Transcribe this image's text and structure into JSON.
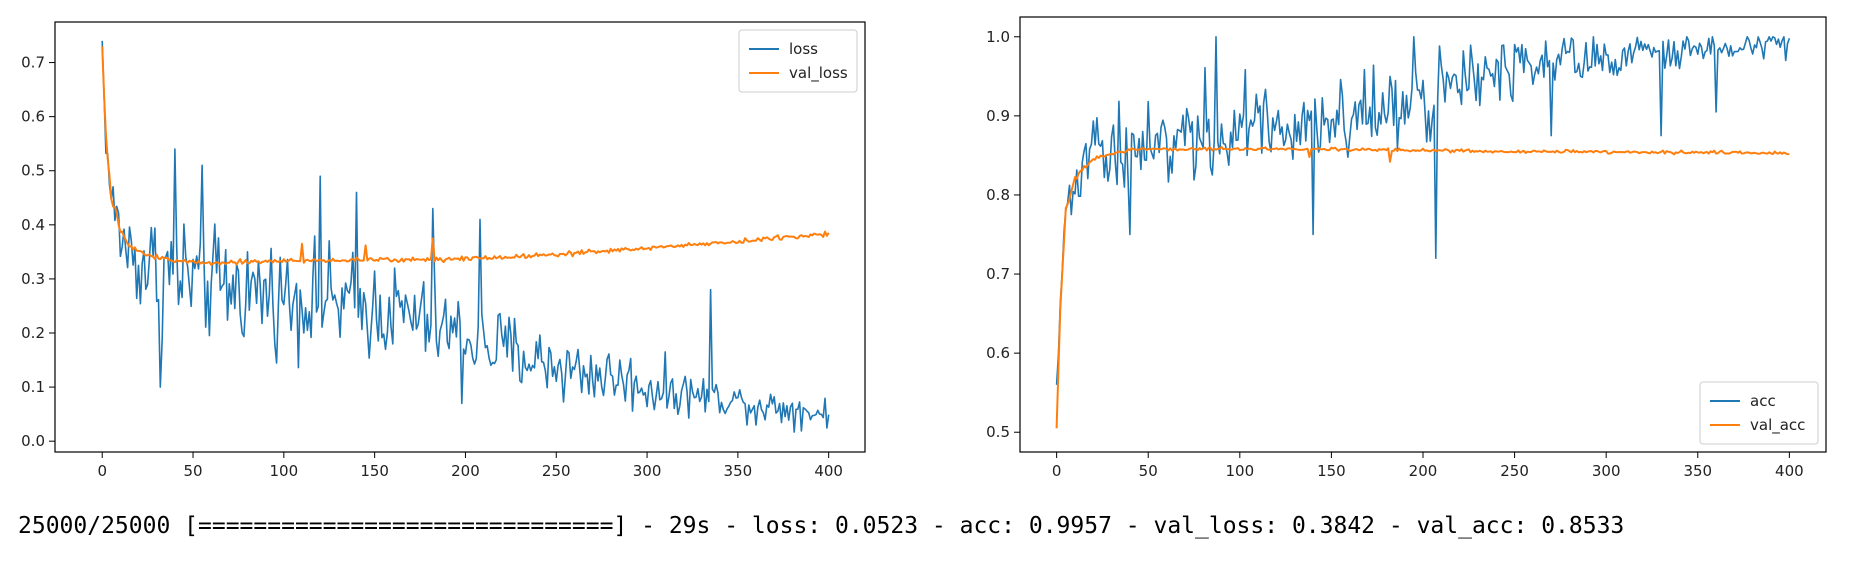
{
  "chart_data": [
    {
      "type": "line",
      "title": "",
      "xlabel": "",
      "ylabel": "",
      "xlim": [
        -26,
        420
      ],
      "ylim": [
        -0.02,
        0.775
      ],
      "xticks": [
        0,
        50,
        100,
        150,
        200,
        250,
        300,
        350,
        400
      ],
      "yticks": [
        0.0,
        0.1,
        0.2,
        0.3,
        0.4,
        0.5,
        0.6,
        0.7
      ],
      "ytick_labels": [
        "0.0",
        "0.1",
        "0.2",
        "0.3",
        "0.4",
        "0.5",
        "0.6",
        "0.7"
      ],
      "legend_position": "top-right",
      "grid": false,
      "series": [
        {
          "name": "loss",
          "color": "#1f77b4",
          "noisy": true,
          "x": [
            0,
            2,
            5,
            10,
            15,
            20,
            30,
            40,
            50,
            60,
            80,
            100,
            120,
            140,
            160,
            180,
            200,
            220,
            240,
            260,
            280,
            300,
            320,
            340,
            360,
            380,
            400
          ],
          "y": [
            0.74,
            0.55,
            0.45,
            0.38,
            0.35,
            0.33,
            0.32,
            0.31,
            0.3,
            0.29,
            0.28,
            0.27,
            0.26,
            0.25,
            0.24,
            0.22,
            0.19,
            0.17,
            0.15,
            0.13,
            0.12,
            0.1,
            0.09,
            0.08,
            0.07,
            0.06,
            0.05
          ],
          "amplitude": [
            0.0,
            0.02,
            0.05,
            0.07,
            0.08,
            0.09,
            0.1,
            0.11,
            0.1,
            0.1,
            0.09,
            0.09,
            0.09,
            0.09,
            0.08,
            0.08,
            0.07,
            0.07,
            0.06,
            0.06,
            0.05,
            0.05,
            0.04,
            0.03,
            0.03,
            0.03,
            0.03
          ],
          "spikes": [
            [
              40,
              0.54
            ],
            [
              55,
              0.51
            ],
            [
              120,
              0.49
            ],
            [
              140,
              0.46
            ],
            [
              182,
              0.43
            ],
            [
              208,
              0.41
            ],
            [
              335,
              0.28
            ],
            [
              32,
              0.1
            ],
            [
              198,
              0.07
            ],
            [
              360,
              0.03
            ]
          ]
        },
        {
          "name": "val_loss",
          "color": "#ff7f0e",
          "noisy": false,
          "x": [
            0,
            2,
            5,
            10,
            15,
            20,
            30,
            40,
            50,
            60,
            80,
            100,
            120,
            140,
            160,
            180,
            200,
            220,
            240,
            260,
            280,
            300,
            320,
            340,
            360,
            380,
            400
          ],
          "y": [
            0.73,
            0.56,
            0.45,
            0.39,
            0.36,
            0.35,
            0.34,
            0.335,
            0.33,
            0.33,
            0.332,
            0.333,
            0.334,
            0.335,
            0.335,
            0.336,
            0.338,
            0.34,
            0.344,
            0.348,
            0.352,
            0.357,
            0.362,
            0.367,
            0.372,
            0.378,
            0.384
          ],
          "amplitude": [
            0.0,
            0.01,
            0.008,
            0.006,
            0.004,
            0.004,
            0.004,
            0.004,
            0.004,
            0.004,
            0.004,
            0.004,
            0.004,
            0.004,
            0.004,
            0.004,
            0.004,
            0.004,
            0.004,
            0.004,
            0.004,
            0.004,
            0.004,
            0.004,
            0.004,
            0.004,
            0.004
          ],
          "spikes": [
            [
              110,
              0.365
            ],
            [
              145,
              0.362
            ],
            [
              182,
              0.375
            ]
          ]
        }
      ]
    },
    {
      "type": "line",
      "title": "",
      "xlabel": "",
      "ylabel": "",
      "xlim": [
        -20,
        420
      ],
      "ylim": [
        0.475,
        1.025
      ],
      "xticks": [
        0,
        50,
        100,
        150,
        200,
        250,
        300,
        350,
        400
      ],
      "yticks": [
        0.5,
        0.6,
        0.7,
        0.8,
        0.9,
        1.0
      ],
      "ytick_labels": [
        "0.5",
        "0.6",
        "0.7",
        "0.8",
        "0.9",
        "1.0"
      ],
      "legend_position": "bottom-right",
      "grid": false,
      "series": [
        {
          "name": "acc",
          "color": "#1f77b4",
          "noisy": true,
          "x": [
            0,
            2,
            5,
            10,
            15,
            20,
            30,
            40,
            50,
            60,
            80,
            100,
            120,
            140,
            160,
            180,
            200,
            220,
            240,
            260,
            280,
            300,
            320,
            340,
            360,
            380,
            400
          ],
          "y": [
            0.56,
            0.65,
            0.78,
            0.81,
            0.83,
            0.85,
            0.86,
            0.86,
            0.87,
            0.87,
            0.88,
            0.88,
            0.89,
            0.89,
            0.9,
            0.91,
            0.93,
            0.94,
            0.95,
            0.96,
            0.97,
            0.97,
            0.98,
            0.98,
            0.99,
            0.99,
            1.0
          ],
          "amplitude": [
            0.0,
            0.02,
            0.03,
            0.04,
            0.05,
            0.06,
            0.07,
            0.07,
            0.07,
            0.06,
            0.06,
            0.06,
            0.05,
            0.05,
            0.05,
            0.05,
            0.05,
            0.04,
            0.04,
            0.03,
            0.03,
            0.025,
            0.02,
            0.02,
            0.015,
            0.015,
            0.015
          ],
          "spikes": [
            [
              87,
              1.0
            ],
            [
              195,
              1.0
            ],
            [
              207,
              0.72
            ],
            [
              40,
              0.75
            ],
            [
              140,
              0.75
            ],
            [
              270,
              0.875
            ],
            [
              330,
              0.875
            ],
            [
              360,
              0.905
            ],
            [
              398,
              0.97
            ]
          ]
        },
        {
          "name": "val_acc",
          "color": "#ff7f0e",
          "noisy": false,
          "x": [
            0,
            2,
            5,
            10,
            15,
            20,
            30,
            40,
            50,
            60,
            80,
            100,
            120,
            140,
            160,
            180,
            200,
            220,
            240,
            260,
            280,
            300,
            320,
            340,
            360,
            380,
            400
          ],
          "y": [
            0.505,
            0.66,
            0.78,
            0.82,
            0.835,
            0.845,
            0.852,
            0.857,
            0.858,
            0.858,
            0.858,
            0.858,
            0.858,
            0.858,
            0.858,
            0.857,
            0.856,
            0.856,
            0.855,
            0.855,
            0.855,
            0.854,
            0.854,
            0.854,
            0.854,
            0.853,
            0.853
          ],
          "amplitude": [
            0.0,
            0.005,
            0.004,
            0.003,
            0.002,
            0.002,
            0.002,
            0.002,
            0.002,
            0.002,
            0.002,
            0.002,
            0.002,
            0.002,
            0.002,
            0.002,
            0.002,
            0.002,
            0.002,
            0.002,
            0.002,
            0.002,
            0.002,
            0.002,
            0.002,
            0.002,
            0.002
          ],
          "spikes": [
            [
              138,
              0.848
            ],
            [
              182,
              0.842
            ]
          ]
        }
      ]
    }
  ],
  "console": {
    "text": "25000/25000 [==============================] - 29s - loss: 0.0523 - acc: 0.9957 - val_loss: 0.3842 - val_acc: 0.8533"
  }
}
